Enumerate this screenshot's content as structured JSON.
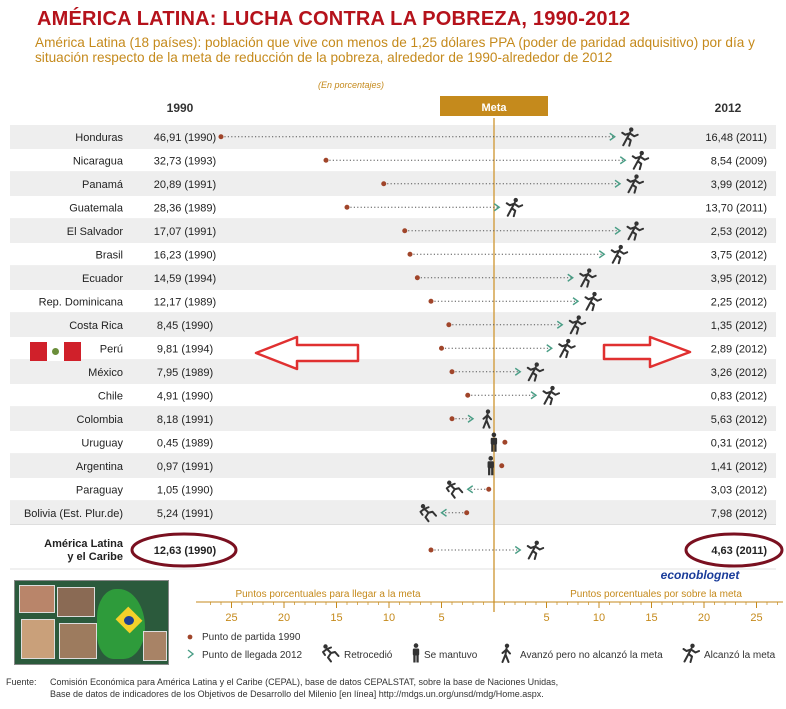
{
  "title": "AMÉRICA LATINA: LUCHA CONTRA LA POBREZA, 1990-2012",
  "subtitle": "América Latina (18 países): población que vive con menos de 1,25 dólares PPA (poder de paridad adquisitivo) por día y situación respecto de la meta de reducción de la pobreza, alrededor de 1990-alrededor de 2012",
  "unit_note": "(En porcentajes)",
  "watermark": "econoblognet",
  "source_label": "Fuente:",
  "source_line1": "Comisión Económica para América Latina y el Caribe (CEPAL), base de datos CEPALSTAT, sobre la base de Naciones Unidas,",
  "source_line2": "Base de datos de indicadores de los Objetivos de Desarrollo del Milenio [en línea] http://mdgs.un.org/unsd/mdg/Home.aspx.",
  "chart_data": {
    "type": "dot-arrow",
    "col_1990_header": "1990",
    "col_2012_header": "2012",
    "meta_label": "Meta",
    "axis_left_label": "Puntos porcentuales para llegar a la meta",
    "axis_right_label": "Puntos porcentuales por sobre la meta",
    "axis_left_ticks": [
      25,
      20,
      15,
      10,
      5
    ],
    "axis_right_ticks": [
      5,
      10,
      15,
      20,
      25
    ],
    "xlim": [
      -28,
      25
    ],
    "colors": {
      "start_dot": "#a0452a",
      "arrow": "#4a9e86",
      "meta": "#d4a24a",
      "header": "#c58a1c",
      "highlight": "#7a1020",
      "red_arrow": "#e03030",
      "icon": "#333333"
    },
    "legend": {
      "start": "Punto de partida 1990",
      "end": "Punto de llegada 2012",
      "retrocedio": "Retrocedió",
      "se_mantuvo": "Se mantuvo",
      "avanzo": "Avanzó pero no alcanzó la meta",
      "alcanzo": "Alcanzó la meta"
    },
    "rows": [
      {
        "country": "Honduras",
        "v1990": "46,91 (1990)",
        "v2012": "16,48 (2011)",
        "start": -26.0,
        "end": 11.5,
        "status": "alcanzo"
      },
      {
        "country": "Nicaragua",
        "v1990": "32,73 (1993)",
        "v2012": "8,54 (2009)",
        "start": -16.0,
        "end": 12.5,
        "status": "alcanzo"
      },
      {
        "country": "Panamá",
        "v1990": "20,89 (1991)",
        "v2012": "3,99 (2012)",
        "start": -10.5,
        "end": 12.0,
        "status": "alcanzo"
      },
      {
        "country": "Guatemala",
        "v1990": "28,36 (1989)",
        "v2012": "13,70 (2011)",
        "start": -14.0,
        "end": 0.5,
        "status": "alcanzo"
      },
      {
        "country": "El Salvador",
        "v1990": "17,07 (1991)",
        "v2012": "2,53 (2012)",
        "start": -8.5,
        "end": 12.0,
        "status": "alcanzo"
      },
      {
        "country": "Brasil",
        "v1990": "16,23 (1990)",
        "v2012": "3,75 (2012)",
        "start": -8.0,
        "end": 10.5,
        "status": "alcanzo"
      },
      {
        "country": "Ecuador",
        "v1990": "14,59 (1994)",
        "v2012": "3,95 (2012)",
        "start": -7.3,
        "end": 7.5,
        "status": "alcanzo"
      },
      {
        "country": "Rep. Dominicana",
        "v1990": "12,17 (1989)",
        "v2012": "2,25 (2012)",
        "start": -6.0,
        "end": 8.0,
        "status": "alcanzo"
      },
      {
        "country": "Costa Rica",
        "v1990": "8,45 (1990)",
        "v2012": "1,35 (2012)",
        "start": -4.3,
        "end": 6.5,
        "status": "alcanzo"
      },
      {
        "country": "Perú",
        "v1990": "9,81 (1994)",
        "v2012": "2,89 (2012)",
        "start": -5.0,
        "end": 5.5,
        "status": "alcanzo"
      },
      {
        "country": "México",
        "v1990": "7,95 (1989)",
        "v2012": "3,26 (2012)",
        "start": -4.0,
        "end": 2.5,
        "status": "alcanzo"
      },
      {
        "country": "Chile",
        "v1990": "4,91 (1990)",
        "v2012": "0,83 (2012)",
        "start": -2.5,
        "end": 4.0,
        "status": "alcanzo"
      },
      {
        "country": "Colombia",
        "v1990": "8,18 (1991)",
        "v2012": "5,63 (2012)",
        "start": -4.0,
        "end": -2.0,
        "status": "avanzo"
      },
      {
        "country": "Uruguay",
        "v1990": "0,45 (1989)",
        "v2012": "0,31 (2012)",
        "start": -0.2,
        "end": -0.2,
        "status": "se_mantuvo"
      },
      {
        "country": "Argentina",
        "v1990": "0,97 (1991)",
        "v2012": "1,41 (2012)",
        "start": -0.5,
        "end": -0.5,
        "status": "se_mantuvo"
      },
      {
        "country": "Paraguay",
        "v1990": "1,05 (1990)",
        "v2012": "3,03 (2012)",
        "start": -0.5,
        "end": -2.5,
        "status": "retrocedio"
      },
      {
        "country": "Bolivia (Est. Plur.de)",
        "v1990": "5,24 (1991)",
        "v2012": "7,98 (2012)",
        "start": -2.6,
        "end": -5.0,
        "status": "retrocedio"
      },
      {
        "country": "América Latina y el Caribe",
        "country_line1": "América Latina",
        "country_line2": "y el Caribe",
        "v1990": "12,63 (1990)",
        "v2012": "4,63 (2011)",
        "start": -6.0,
        "end": 2.5,
        "status": "alcanzo",
        "total": true
      }
    ]
  }
}
